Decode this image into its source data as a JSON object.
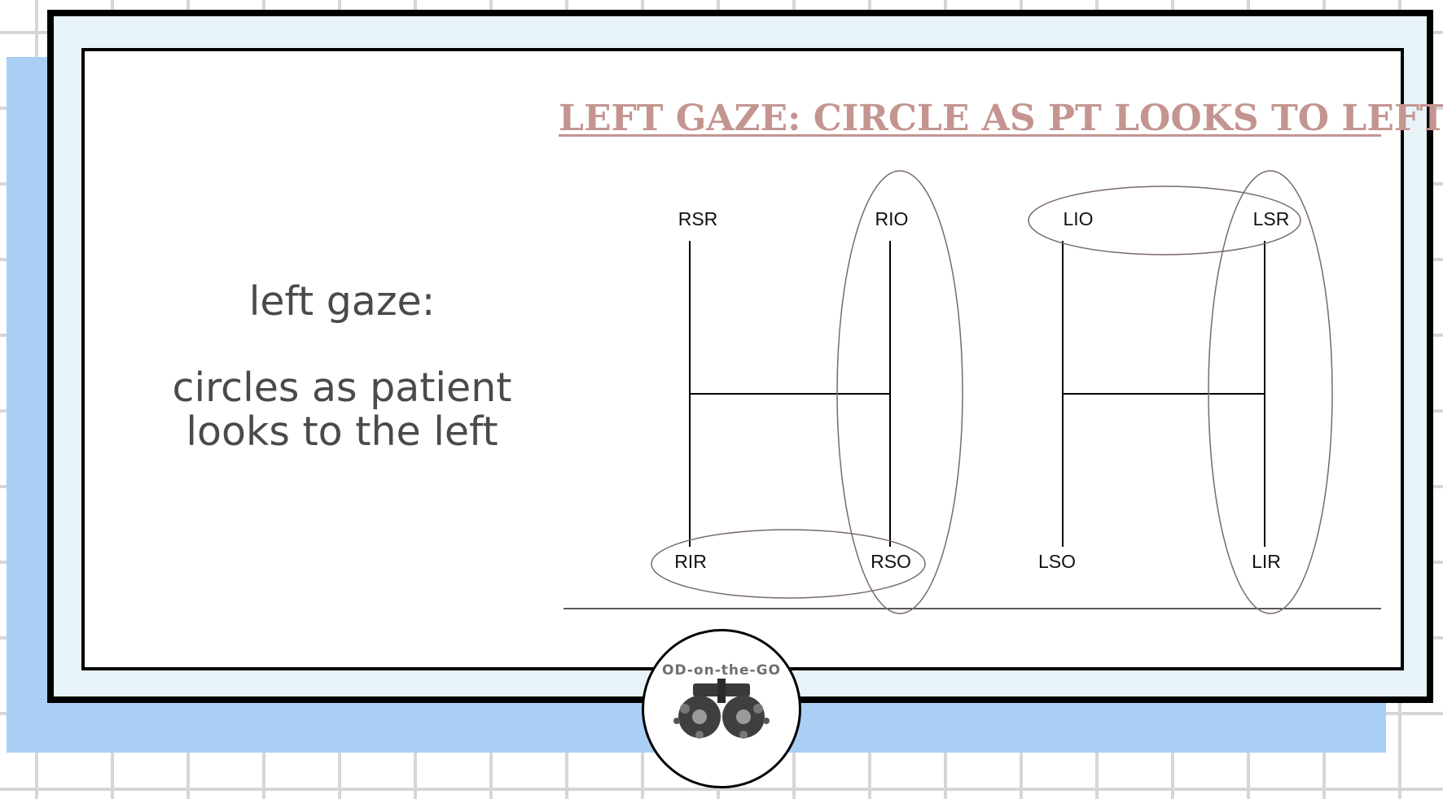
{
  "left_text": {
    "line1": "left gaze:",
    "line2": "circles as patient",
    "line3": "looks to the left"
  },
  "title": "LEFT GAZE: CIRCLE AS PT LOOKS TO LEFT",
  "muscles": {
    "rsr": "RSR",
    "rio": "RIO",
    "rir": "RIR",
    "rso": "RSO",
    "lio": "LIO",
    "lsr": "LSR",
    "lso": "LSO",
    "lir": "LIR"
  },
  "logo": {
    "text": "OD-on-the-GO",
    "icon": "phoropter-icon"
  },
  "colors": {
    "title": "#c49590",
    "circle_stroke": "#7a6a6a",
    "shadow": "#a9cff5",
    "frame_fill": "#e8f3f8"
  }
}
